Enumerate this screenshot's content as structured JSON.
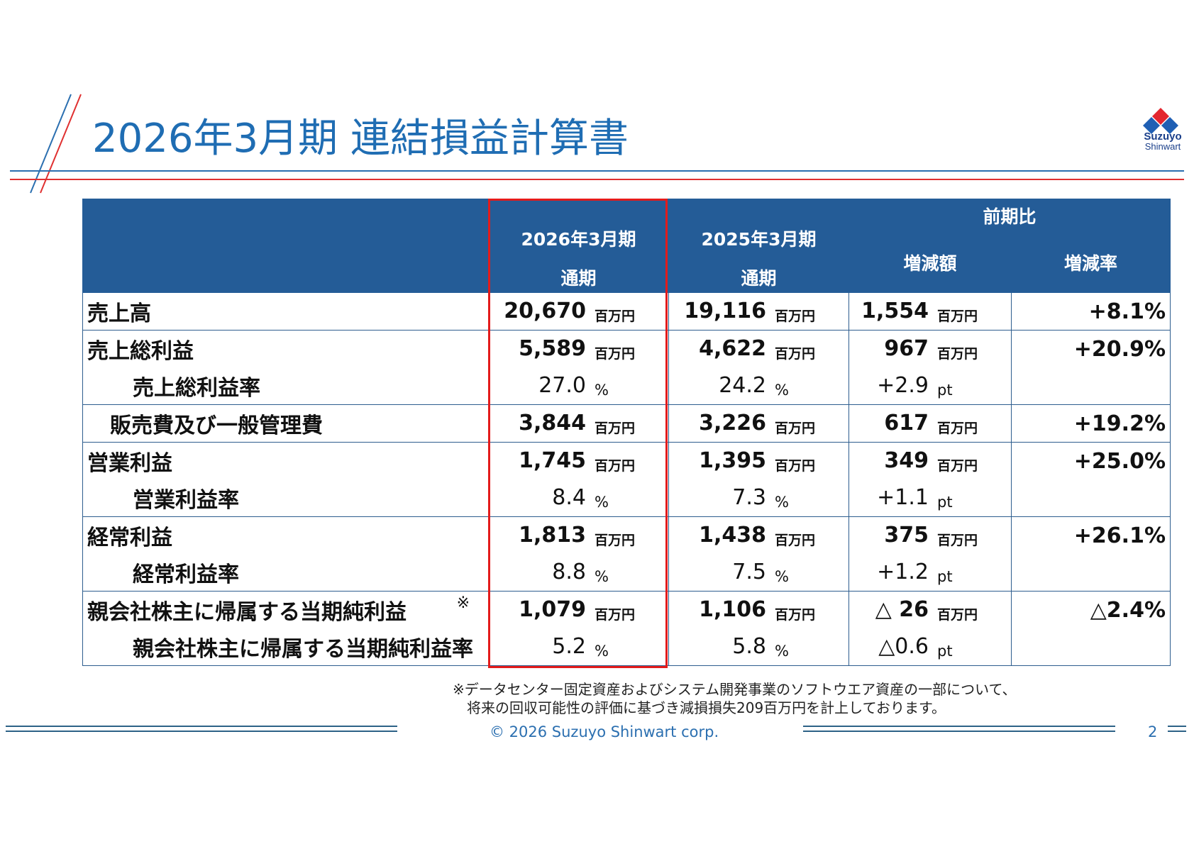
{
  "title": "2026年3月期 連結損益計算書",
  "logo": {
    "line1": "Suzuyo",
    "line2": "Shinwart"
  },
  "header": {
    "col_2026": "2026年3月期",
    "col_2025": "2025年3月期",
    "sub_2026": "通期",
    "sub_2025": "通期",
    "compare": "前期比",
    "diff_amount": "増減額",
    "diff_rate": "増減率"
  },
  "rows": [
    {
      "label": "売上高",
      "v2026": "20,670",
      "u2026": "百万円",
      "v2025": "19,116",
      "u2025": "百万円",
      "diff": "1,554",
      "udiff": "百万円",
      "rate": "+8.1%"
    },
    {
      "label": "売上総利益",
      "v2026": "5,589",
      "u2026": "百万円",
      "v2025": "4,622",
      "u2025": "百万円",
      "diff": "967",
      "udiff": "百万円",
      "rate": "+20.9%"
    },
    {
      "label": "売上総利益率",
      "v2026": "27.0",
      "u2026": "%",
      "v2025": "24.2",
      "u2025": "%",
      "diff": "+2.9",
      "udiff": "pt",
      "rate": ""
    },
    {
      "label": "販売費及び一般管理費",
      "v2026": "3,844",
      "u2026": "百万円",
      "v2025": "3,226",
      "u2025": "百万円",
      "diff": "617",
      "udiff": "百万円",
      "rate": "+19.2%"
    },
    {
      "label": "営業利益",
      "v2026": "1,745",
      "u2026": "百万円",
      "v2025": "1,395",
      "u2025": "百万円",
      "diff": "349",
      "udiff": "百万円",
      "rate": "+25.0%"
    },
    {
      "label": "営業利益率",
      "v2026": "8.4",
      "u2026": "%",
      "v2025": "7.3",
      "u2025": "%",
      "diff": "+1.1",
      "udiff": "pt",
      "rate": ""
    },
    {
      "label": "経常利益",
      "v2026": "1,813",
      "u2026": "百万円",
      "v2025": "1,438",
      "u2025": "百万円",
      "diff": "375",
      "udiff": "百万円",
      "rate": "+26.1%"
    },
    {
      "label": "経常利益率",
      "v2026": "8.8",
      "u2026": "%",
      "v2025": "7.5",
      "u2025": "%",
      "diff": "+1.2",
      "udiff": "pt",
      "rate": ""
    },
    {
      "label": "親会社株主に帰属する当期純利益",
      "mark": "※",
      "v2026": "1,079",
      "u2026": "百万円",
      "v2025": "1,106",
      "u2025": "百万円",
      "diff": "△ 26",
      "udiff": "百万円",
      "rate": "△2.4%"
    },
    {
      "label": "親会社株主に帰属する当期純利益率",
      "v2026": "5.2",
      "u2026": "%",
      "v2025": "5.8",
      "u2025": "%",
      "diff": "△0.6",
      "udiff": "pt",
      "rate": ""
    }
  ],
  "notes": {
    "line1": "※データセンター固定資産およびシステム開発事業のソフトウエア資産の一部について、",
    "line2": "将来の回収可能性の評価に基づき減損損失209百万円を計上しております。"
  },
  "footer": {
    "copyright": "© 2026 Suzuyo Shinwart corp.",
    "page": "2"
  },
  "colors": {
    "header_bg": "#245c97",
    "title": "#1f6db3",
    "highlight": "#e31b1b"
  }
}
